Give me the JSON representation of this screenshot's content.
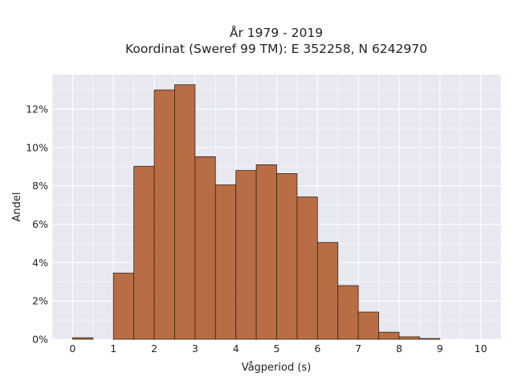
{
  "chart_data": {
    "type": "bar",
    "title": "År 1979 - 2019",
    "subtitle": "Koordinat (Sweref 99 TM): E 352258, N 6242970",
    "xlabel": "Vågperiod (s)",
    "ylabel": "Andel",
    "bin_width": 0.5,
    "bin_starts": [
      0,
      0.5,
      1,
      1.5,
      2,
      2.5,
      3,
      3.5,
      4,
      4.5,
      5,
      5.5,
      6,
      6.5,
      7,
      7.5,
      8,
      8.5,
      9,
      9.5
    ],
    "values": [
      0.08,
      0,
      3.45,
      9.02,
      13.0,
      13.27,
      9.52,
      8.05,
      8.8,
      9.1,
      8.64,
      7.42,
      5.05,
      2.8,
      1.42,
      0.37,
      0.13,
      0.04,
      0,
      0
    ],
    "xlim": [
      -0.5,
      10.5
    ],
    "ylim": [
      0,
      13.8
    ],
    "xticks": [
      0,
      1,
      2,
      3,
      4,
      5,
      6,
      7,
      8,
      9,
      10
    ],
    "xtick_labels": [
      "0",
      "1",
      "2",
      "3",
      "4",
      "5",
      "6",
      "7",
      "8",
      "9",
      "10"
    ],
    "yticks": [
      0,
      2,
      4,
      6,
      8,
      10,
      12
    ],
    "ytick_labels": [
      "0%",
      "2%",
      "4%",
      "6%",
      "8%",
      "10%",
      "12%"
    ],
    "grid": true,
    "legend": "none",
    "colors": {
      "bar_fill": "#b5663a",
      "bar_edge": "#3a2418",
      "plot_background": "#e8e8f1",
      "grid": "#ffffff"
    }
  }
}
